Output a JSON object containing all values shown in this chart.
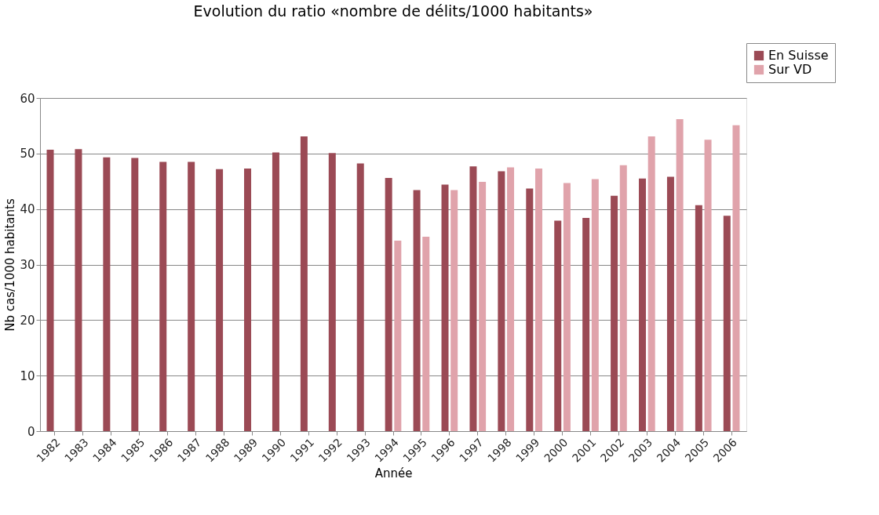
{
  "chart_data": {
    "type": "bar",
    "title": "Evolution du ratio «nombre de délits/1000 habitants»",
    "xlabel": "Année",
    "ylabel": "Nb cas/1000 habitants",
    "categories": [
      "1982",
      "1983",
      "1984",
      "1985",
      "1986",
      "1987",
      "1988",
      "1989",
      "1990",
      "1991",
      "1992",
      "1993",
      "1994",
      "1995",
      "1996",
      "1997",
      "1998",
      "1999",
      "2000",
      "2001",
      "2002",
      "2003",
      "2004",
      "2005",
      "2006"
    ],
    "series": [
      {
        "name": "En Suisse",
        "color": "#9b4a55",
        "values": [
          50.7,
          50.8,
          49.3,
          49.2,
          48.5,
          48.5,
          47.2,
          47.3,
          50.2,
          53.1,
          50.1,
          48.2,
          45.6,
          43.4,
          44.4,
          47.7,
          46.8,
          43.7,
          37.9,
          38.4,
          42.4,
          45.5,
          45.8,
          40.7,
          38.8
        ]
      },
      {
        "name": "Sur VD",
        "color": "#e0a3ab",
        "values": [
          null,
          null,
          null,
          null,
          null,
          null,
          null,
          null,
          null,
          null,
          null,
          null,
          34.3,
          35.0,
          43.4,
          44.9,
          47.5,
          47.3,
          44.7,
          45.4,
          47.9,
          53.1,
          56.2,
          52.5,
          55.1
        ]
      }
    ],
    "ylim": [
      0,
      60
    ],
    "yticks": [
      0,
      10,
      20,
      30,
      40,
      50,
      60
    ],
    "grid": "y",
    "legend": "top right"
  }
}
